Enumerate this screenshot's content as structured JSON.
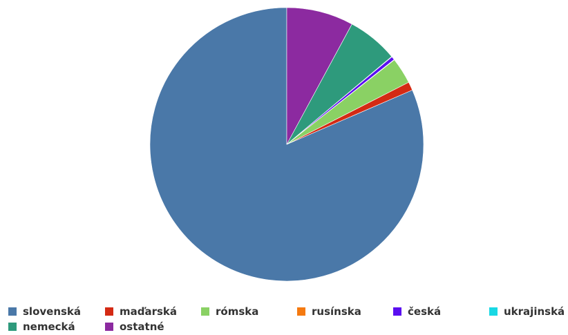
{
  "chart_data": {
    "type": "pie",
    "categories": [
      "slovenská",
      "maďarská",
      "rómska",
      "rusínska",
      "česká",
      "ukrajinská",
      "nemecká",
      "ostatné"
    ],
    "values": [
      81.5,
      1.0,
      3.1,
      0.05,
      0.4,
      0.05,
      6.0,
      7.9
    ],
    "colors": [
      "#4a78a8",
      "#d42a14",
      "#8ad164",
      "#f57a10",
      "#5a0ef0",
      "#18d8e4",
      "#2e9a7c",
      "#8c2aa0"
    ],
    "start_angle": 0,
    "direction": "counterclockwise",
    "legend_position": "bottom"
  }
}
